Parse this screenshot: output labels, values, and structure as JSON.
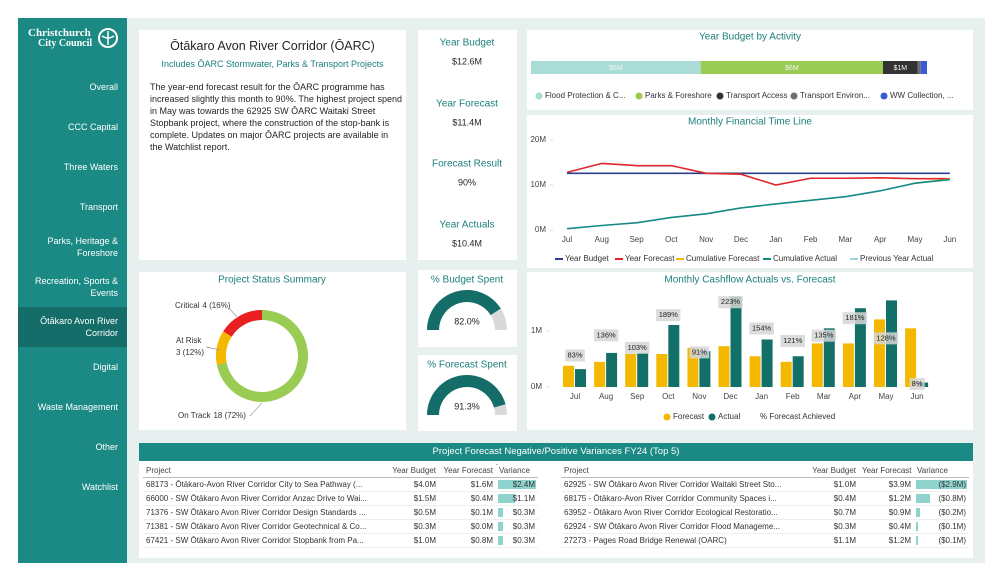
{
  "sidebar": {
    "logo": [
      "Christchurch",
      "City Council"
    ],
    "nav": [
      "Overall",
      "CCC Capital",
      "Three Waters",
      "Transport",
      "Parks, Heritage & Foreshore",
      "Recreation, Sports & Events",
      "Ōtākaro Avon River Corridor",
      "Digital",
      "Waste Management",
      "Other",
      "Watchlist"
    ],
    "active": 6
  },
  "summary": {
    "title": "Ōtākaro Avon River Corridor (ŌARC)",
    "subtitle": "Includes ŌARC Stormwater, Parks & Transport Projects",
    "text": "The year-end forecast result for the ŌARC programme has increased slightly this month to 90%. The highest project spend in May was towards the 62925 SW ŌARC Waitaki Street Stopbank project, where the construction of the stop-bank is complete. Updates on major ŌARC projects are available in the Watchlist report."
  },
  "kpis": [
    {
      "label": "Year Budget",
      "value": "$12.6M"
    },
    {
      "label": "Year Forecast",
      "value": "$11.4M"
    },
    {
      "label": "Forecast Result",
      "value": "90%"
    },
    {
      "label": "Year Actuals",
      "value": "$10.4M"
    }
  ],
  "chart_data": [
    {
      "type": "stacked-bar",
      "title": "Year Budget by Activity",
      "categories": [
        "Flood Protection & C...",
        "Parks & Foreshore",
        "Transport Access",
        "Transport Environ...",
        "WW Collection, ..."
      ],
      "values": [
        5.4,
        5.8,
        1.1,
        0.1,
        0.2
      ],
      "value_labels": [
        "$5M",
        "$6M",
        "$1M",
        null,
        null
      ],
      "colors": [
        "#a9dbd7",
        "#9acb52",
        "#333333",
        "#6e6e6e",
        "#3b5bd0"
      ]
    },
    {
      "type": "line",
      "title": "Monthly Financial Time Line",
      "categories": [
        "Jul",
        "Aug",
        "Sep",
        "Oct",
        "Nov",
        "Dec",
        "Jan",
        "Feb",
        "Mar",
        "Apr",
        "May",
        "Jun"
      ],
      "ylim": [
        0,
        20
      ],
      "yticks": [
        {
          "value": 0,
          "label": "0M"
        },
        {
          "value": 10,
          "label": "10M"
        },
        {
          "value": 20,
          "label": "20M"
        }
      ],
      "series": [
        {
          "name": "Year Budget",
          "color": "#2c3e8c",
          "values": [
            12.6,
            12.6,
            12.6,
            12.6,
            12.6,
            12.6,
            12.6,
            12.6,
            12.6,
            12.6,
            12.6,
            12.6
          ]
        },
        {
          "name": "Year Forecast",
          "color": "#e0262a",
          "values": [
            12.8,
            14.8,
            14.3,
            14.3,
            12.6,
            12.4,
            10.0,
            11.5,
            11.5,
            11.6,
            11.4,
            11.4
          ]
        },
        {
          "name": "Cumulative Forecast",
          "color": "#f5b800",
          "values": [
            null,
            null,
            null,
            null,
            null,
            null,
            null,
            null,
            null,
            null,
            10.4,
            11.3
          ]
        },
        {
          "name": "Cumulative Actual",
          "color": "#168a84",
          "values": [
            0.3,
            1.0,
            1.6,
            2.8,
            3.6,
            4.9,
            5.8,
            6.6,
            7.4,
            8.7,
            10.4,
            11.2
          ]
        },
        {
          "name": "Previous Year Actual",
          "color": "#9dd3e0",
          "values": [
            null,
            null,
            null,
            null,
            null,
            null,
            null,
            null,
            null,
            null,
            null,
            null
          ]
        }
      ]
    },
    {
      "type": "bar-line",
      "title": "Monthly Cashflow Actuals vs. Forecast",
      "categories": [
        "Jul",
        "Aug",
        "Sep",
        "Oct",
        "Nov",
        "Dec",
        "Jan",
        "Feb",
        "Mar",
        "Apr",
        "May",
        "Jun"
      ],
      "ylim": [
        0,
        1.7
      ],
      "yticks": [
        {
          "value": 0,
          "label": "0M"
        },
        {
          "value": 1,
          "label": "1M"
        }
      ],
      "y2lim": [
        0,
        250
      ],
      "series": [
        {
          "name": "Forecast",
          "type": "bar",
          "color": "#f5b800",
          "values": [
            0.38,
            0.45,
            0.59,
            0.59,
            0.7,
            0.73,
            0.55,
            0.45,
            0.78,
            0.78,
            1.21,
            1.05
          ]
        },
        {
          "name": "Actual",
          "type": "bar",
          "color": "#137068",
          "values": [
            0.32,
            0.61,
            0.61,
            1.11,
            0.64,
            1.62,
            0.85,
            0.55,
            1.05,
            1.41,
            1.55,
            0.08
          ]
        },
        {
          "name": "% Forecast Achieved",
          "type": "line",
          "axis": "y2",
          "color": "#d6d6d6",
          "values": [
            83,
            136,
            103,
            189,
            91,
            223,
            154,
            121,
            135,
            181,
            128,
            8
          ],
          "value_labels": [
            "83%",
            "136%",
            "103%",
            "189%",
            "91%",
            "223%",
            "154%",
            "121%",
            "135%",
            "181%",
            "128%",
            "8%"
          ]
        }
      ]
    },
    {
      "type": "donut",
      "title": "Project Status Summary",
      "categories": [
        "Critical",
        "At Risk",
        "On Track"
      ],
      "values": [
        4,
        3,
        18
      ],
      "value_labels": [
        "4 (16%)",
        "3 (12%)",
        "18 (72%)"
      ],
      "colors": [
        "#e8201f",
        "#f5b800",
        "#9acb52"
      ]
    },
    {
      "type": "gauge",
      "title": "% Budget Spent",
      "value": 82.0,
      "value_label": "82.0%",
      "ylim": [
        0,
        100
      ],
      "color": "#146d68"
    },
    {
      "type": "gauge",
      "title": "% Forecast Spent",
      "value": 91.3,
      "value_label": "91.3%",
      "ylim": [
        0,
        100
      ],
      "color": "#146d68"
    }
  ],
  "variances": {
    "title": "Project Forecast Negative/Positive Variances FY24 (Top 5)",
    "tables": [
      {
        "columns": [
          "Project",
          "Year Budget",
          "Year Forecast",
          "Variance"
        ],
        "rows": [
          [
            "68173 - Ōtākaro-Avon River Corridor City to Sea Pathway (...",
            "$4.0M",
            "$1.6M"
          ],
          [
            "66000 - SW Ōtākaro Avon River Corridor Anzac Drive to Wai...",
            "$1.5M",
            "$0.4M"
          ],
          [
            "71376 - SW Ōtākaro Avon River Corridor Design Standards ...",
            "$0.5M",
            "$0.1M"
          ],
          [
            "71381 - SW Ōtākaro Avon River Corridor Geotechnical & Co...",
            "$0.3M",
            "$0.0M"
          ],
          [
            "67421 - SW Ōtākaro Avon River Corridor Stopbank from Pa...",
            "$1.0M",
            "$0.8M"
          ]
        ],
        "variances": [
          2.4,
          1.1,
          0.3,
          0.3,
          0.3
        ],
        "variance_labels": [
          "$2.4M",
          "$1.1M",
          "$0.3M",
          "$0.3M",
          "$0.3M"
        ]
      },
      {
        "columns": [
          "Project",
          "Year Budget",
          "Year Forecast",
          "Variance"
        ],
        "rows": [
          [
            "62925 - SW Ōtākaro Avon River Corridor Waitaki Street Sto...",
            "$1.0M",
            "$3.9M"
          ],
          [
            "68175 - Ōtākaro-Avon River Corridor Community Spaces i...",
            "$0.4M",
            "$1.2M"
          ],
          [
            "63952 - Ōtākaro Avon River Corridor Ecological Restoratio...",
            "$0.7M",
            "$0.9M"
          ],
          [
            "62924 - SW Ōtākaro Avon River Corridor Flood Manageme...",
            "$0.3M",
            "$0.4M"
          ],
          [
            "27273 - Pages Road Bridge Renewal (OARC)",
            "$1.1M",
            "$1.2M"
          ]
        ],
        "variances": [
          -2.9,
          -0.8,
          -0.2,
          -0.1,
          -0.1
        ],
        "variance_labels": [
          "($2.9M)",
          "($0.8M)",
          "($0.2M)",
          "($0.1M)",
          "($0.1M)"
        ]
      }
    ]
  }
}
